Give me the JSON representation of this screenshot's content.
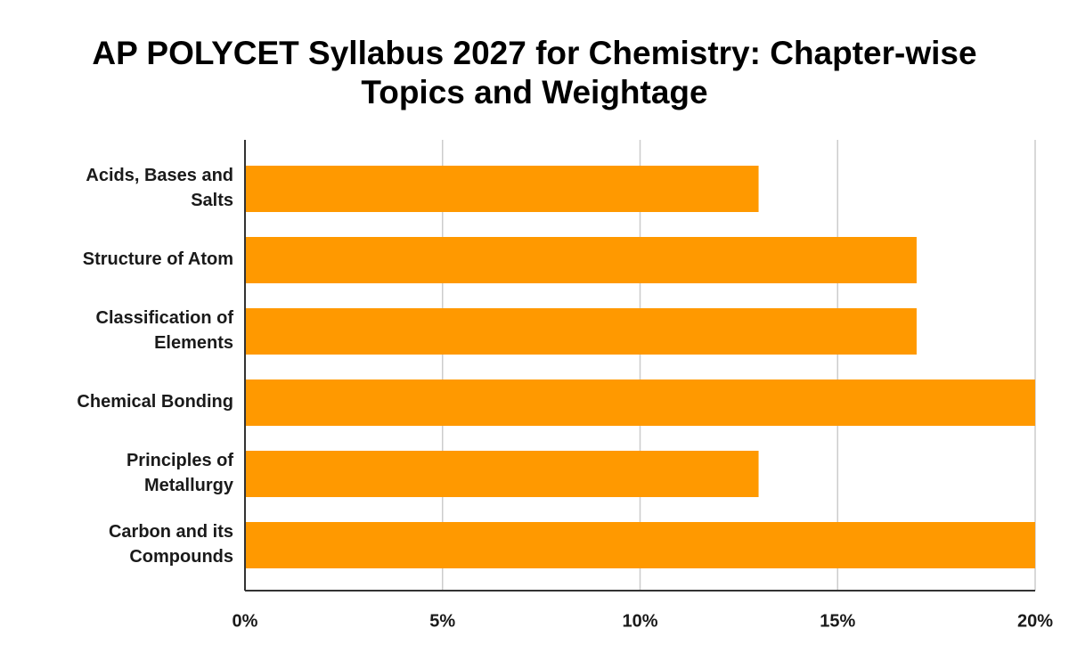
{
  "chart_data": {
    "type": "bar",
    "orientation": "horizontal",
    "title_lines": [
      "AP POLYCET Syllabus 2027 for Chemistry: Chapter-wise",
      "Topics and Weightage"
    ],
    "categories": [
      [
        "Acids, Bases and",
        "Salts"
      ],
      [
        "Structure of Atom"
      ],
      [
        "Classification of",
        "Elements"
      ],
      [
        "Chemical Bonding"
      ],
      [
        "Principles of",
        "Metallurgy"
      ],
      [
        "Carbon and its",
        "Compounds"
      ]
    ],
    "values": [
      13,
      17,
      17,
      20,
      13,
      20
    ],
    "xlim": [
      0,
      20
    ],
    "xticks": [
      0,
      5,
      10,
      15,
      20
    ],
    "xtick_labels": [
      "0%",
      "5%",
      "10%",
      "15%",
      "20%"
    ],
    "grid": "vertical",
    "legend": "none",
    "colors": {
      "bar": "#ff9900",
      "grid": "#cccccc",
      "axis": "#333333"
    }
  }
}
